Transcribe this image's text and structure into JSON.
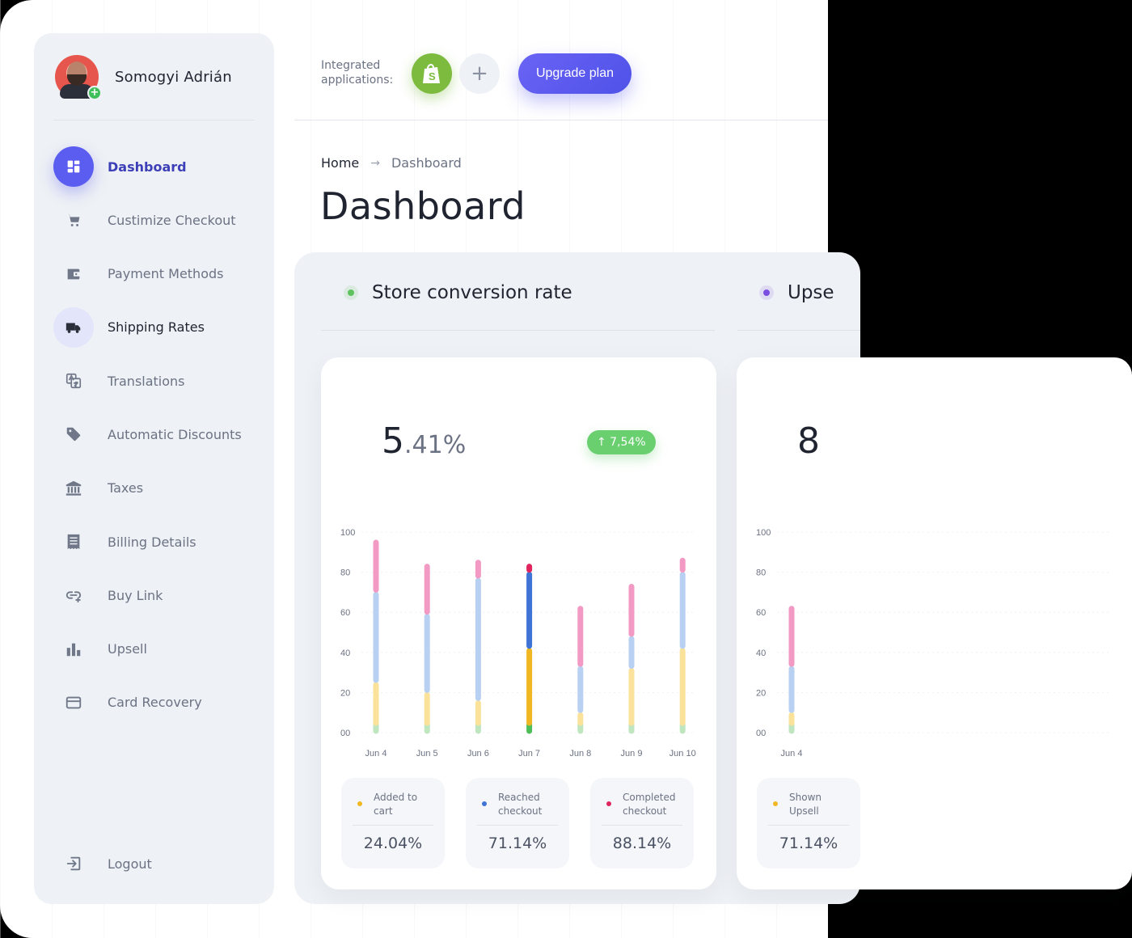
{
  "user": {
    "name": "Somogyi Adrián"
  },
  "sidebar": {
    "items": [
      {
        "label": "Dashboard",
        "icon": "dashboard-icon"
      },
      {
        "label": "Custimize Checkout",
        "icon": "cart-icon"
      },
      {
        "label": "Payment Methods",
        "icon": "wallet-icon"
      },
      {
        "label": "Shipping Rates",
        "icon": "truck-icon"
      },
      {
        "label": "Translations",
        "icon": "translate-icon"
      },
      {
        "label": "Automatic Discounts",
        "icon": "tag-icon"
      },
      {
        "label": "Taxes",
        "icon": "bank-icon"
      },
      {
        "label": "Billing Details",
        "icon": "receipt-icon"
      },
      {
        "label": "Buy Link",
        "icon": "link-icon"
      },
      {
        "label": "Upsell",
        "icon": "bar-chart-icon"
      },
      {
        "label": "Card Recovery",
        "icon": "card-icon"
      }
    ],
    "logout": "Logout"
  },
  "topbar": {
    "integrated_line1": "Integrated",
    "integrated_line2": "applications:",
    "upgrade_label": "Upgrade plan",
    "add_symbol": "+"
  },
  "breadcrumb": {
    "home": "Home",
    "separator": "→",
    "current": "Dashboard"
  },
  "page_title": "Dashboard",
  "colors": {
    "accent": "#5b5cf0",
    "green": "#69cf6f",
    "pink": "#f29ac4",
    "blue_light": "#b8d0f2",
    "yellow_light": "#fbe29a",
    "green_light": "#bfe6bf",
    "blue_strong": "#3f73d6",
    "yellow_strong": "#f0b722",
    "green_strong": "#4fbe5a",
    "red": "#e0245e",
    "purple": "#7b4de0"
  },
  "sections": [
    {
      "title": "Store conversion rate",
      "dot_color": "#5fc25f",
      "value_int": "5",
      "value_dec": ".41%",
      "trend": "↑ 7,54%",
      "stats": [
        {
          "label_line1": "Added to",
          "label_line2": "cart",
          "value": "24.04%",
          "dot_color": "#f0b722"
        },
        {
          "label_line1": "Reached",
          "label_line2": "checkout",
          "value": "71.14%",
          "dot_color": "#3f73d6"
        },
        {
          "label_line1": "Completed",
          "label_line2": "checkout",
          "value": "88.14%",
          "dot_color": "#e0245e"
        }
      ]
    },
    {
      "title": "Upse",
      "dot_color": "#7b4de0",
      "value_int": "8",
      "stats": [
        {
          "label_line1": "Shown",
          "label_line2": "Upsell",
          "value": "71.14%",
          "dot_color": "#f0b722"
        }
      ]
    }
  ],
  "chart_data": [
    {
      "type": "bar",
      "stacked": true,
      "categories": [
        "Jun 4",
        "Jun 5",
        "Jun 6",
        "Jun 7",
        "Jun 8",
        "Jun 9",
        "Jun 10"
      ],
      "y_ticks": [
        "00",
        "20",
        "40",
        "60",
        "80",
        "100"
      ],
      "ylim": [
        0,
        100
      ],
      "highlight_category": "Jun 7",
      "series": [
        {
          "name": "Added to cart",
          "values": [
            25,
            20,
            16,
            42,
            10,
            32,
            42
          ]
        },
        {
          "name": "Reached checkout",
          "values": [
            45,
            39,
            61,
            38,
            23,
            16,
            38
          ]
        },
        {
          "name": "Completed checkout",
          "values": [
            26,
            25,
            9,
            4,
            30,
            26,
            7
          ]
        }
      ]
    },
    {
      "type": "bar",
      "stacked": true,
      "categories": [
        "Jun 4"
      ],
      "y_ticks": [
        "00",
        "20",
        "40",
        "60",
        "80",
        "100"
      ],
      "ylim": [
        0,
        100
      ],
      "series": [
        {
          "name": "Added to cart",
          "values": [
            10
          ]
        },
        {
          "name": "Reached checkout",
          "values": [
            23
          ]
        },
        {
          "name": "Completed checkout",
          "values": [
            30
          ]
        }
      ]
    }
  ]
}
